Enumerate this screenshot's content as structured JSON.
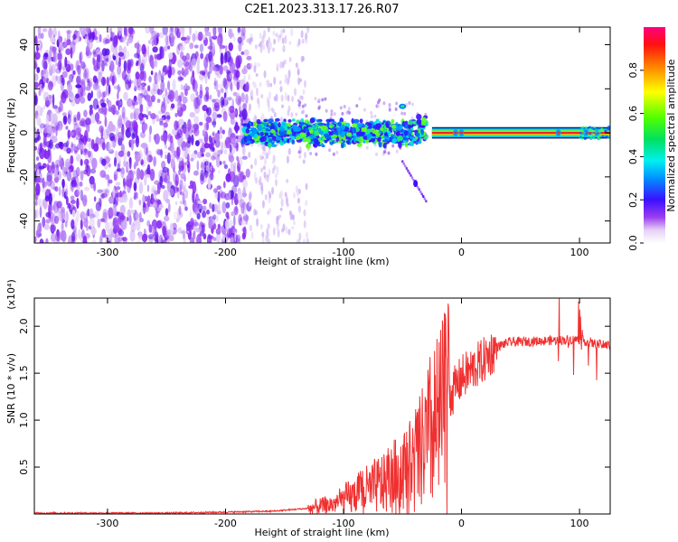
{
  "title": "C2E1.2023.313.17.26.R07",
  "chart_data": [
    {
      "type": "heatmap",
      "xlabel": "Height of straight line (km)",
      "ylabel": "Frequency (Hz)",
      "xlim": [
        -362,
        126
      ],
      "ylim": [
        -50,
        48
      ],
      "xticks": [
        -300,
        -200,
        -100,
        0,
        100
      ],
      "xtick_labels": [
        "-300",
        "-200",
        "-100",
        "0",
        "100"
      ],
      "yticks": [
        -40,
        -20,
        0,
        20,
        40
      ],
      "ytick_labels": [
        "-40",
        "-20",
        "0",
        "20",
        "40"
      ],
      "colorbar": {
        "label": "Normalized spectral amplitude",
        "range": [
          0,
          1
        ],
        "ticks": [
          0.0,
          0.2,
          0.4,
          0.6,
          0.8
        ],
        "tick_labels": [
          "0.0",
          "0.2",
          "0.4",
          "0.6",
          "0.8"
        ],
        "colormap": "rainbow"
      },
      "features": [
        {
          "x_range": [
            -362,
            -180
          ],
          "freq_range": [
            -50,
            48
          ],
          "amplitude": 0.1
        },
        {
          "x_range": [
            -185,
            -30
          ],
          "freq_center": 0,
          "freq_halfwidth": 6,
          "amplitude": 0.55
        },
        {
          "x_range": [
            -25,
            126
          ],
          "freq_center": 0,
          "freq_halfwidth": 2,
          "amplitude": 0.95
        },
        {
          "x": -40,
          "freq": -23,
          "amplitude": 0.2
        }
      ]
    },
    {
      "type": "line",
      "xlabel": "Height of straight line (km)",
      "ylabel": "SNR (10 * v/v)",
      "scale_label": "(x10⁴)",
      "xlim": [
        -362,
        126
      ],
      "ylim": [
        0,
        2.3
      ],
      "xticks": [
        -300,
        -200,
        -100,
        0,
        100
      ],
      "xtick_labels": [
        "-300",
        "-200",
        "-100",
        "0",
        "100"
      ],
      "yticks": [
        0.5,
        1.0,
        1.5,
        2.0
      ],
      "ytick_labels": [
        "0.5",
        "1.0",
        "1.5",
        "2.0"
      ],
      "line_color": "#f03030",
      "series": [
        {
          "x": [
            -362,
            -300,
            -250,
            -200,
            -160,
            -130,
            -110,
            -90,
            -70,
            -50,
            -40,
            -30,
            -20,
            -15,
            -10,
            -5,
            0,
            10,
            20,
            30,
            40,
            60,
            80,
            100,
            110,
            120,
            126
          ],
          "values": [
            0.01,
            0.01,
            0.01,
            0.02,
            0.03,
            0.06,
            0.1,
            0.2,
            0.3,
            0.45,
            0.55,
            0.75,
            0.95,
            1.1,
            1.25,
            1.35,
            1.45,
            1.55,
            1.65,
            1.78,
            1.83,
            1.84,
            1.85,
            1.86,
            1.82,
            1.8,
            1.8
          ]
        }
      ]
    }
  ]
}
